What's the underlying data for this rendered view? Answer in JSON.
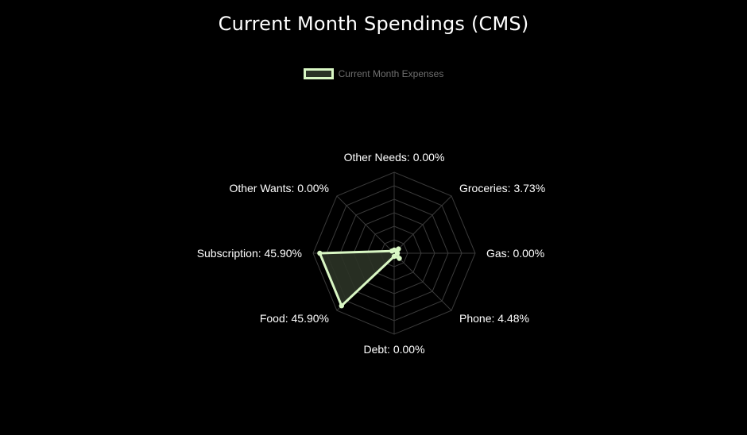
{
  "chart_data": {
    "type": "radar",
    "title": "Current Month Spendings (CMS)",
    "legend": {
      "placement": "top-center",
      "entries": [
        "Current Month Expenses"
      ]
    },
    "categories": [
      "Other Needs",
      "Groceries",
      "Gas",
      "Phone",
      "Debt",
      "Food",
      "Subscription",
      "Other Wants"
    ],
    "series": [
      {
        "name": "Current Month Expenses",
        "values": [
          0.0,
          3.73,
          0.0,
          4.48,
          0.0,
          45.9,
          45.9,
          0.0
        ],
        "color": "#d9f7c4",
        "fill": "#2b3326"
      }
    ],
    "point_labels": [
      "Other Needs: 0.00%",
      "Groceries: 3.73%",
      "Gas: 0.00%",
      "Phone: 4.48%",
      "Debt: 0.00%",
      "Food: 45.90%",
      "Subscription: 45.90%",
      "Other Wants: 0.00%"
    ],
    "r_max": 50,
    "grid": true,
    "grid_color": "#3a3a3a",
    "background": "#000000"
  }
}
